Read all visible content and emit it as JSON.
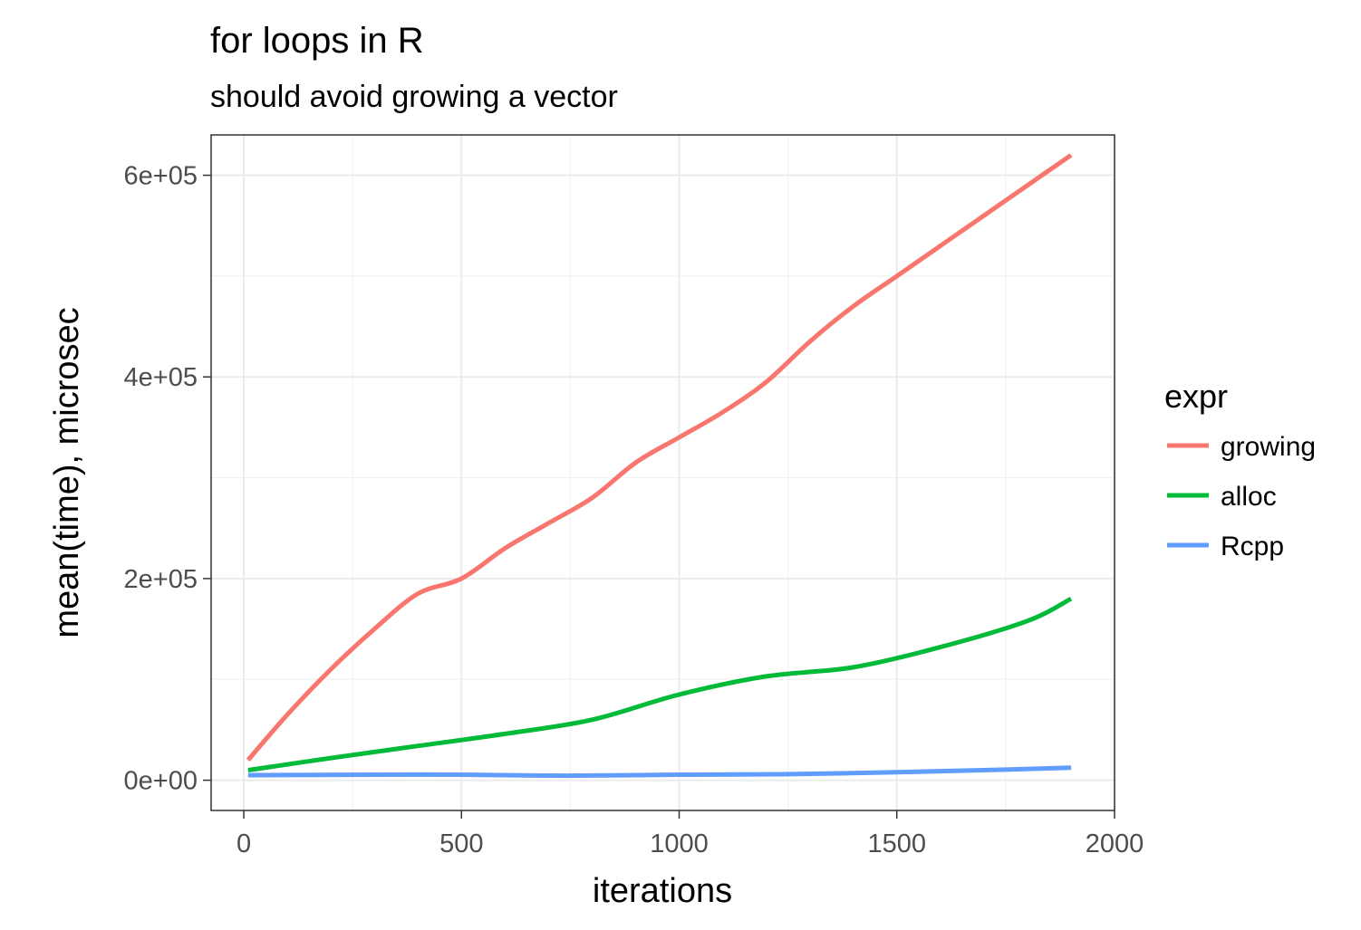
{
  "chart_data": {
    "type": "line",
    "title": "for loops in R",
    "subtitle": "should avoid growing a vector",
    "xlabel": "iterations",
    "ylabel": "mean(time), microsec",
    "xlim": [
      -75,
      2000
    ],
    "ylim": [
      -30000,
      640000
    ],
    "x_ticks": [
      0,
      500,
      1000,
      1500,
      2000
    ],
    "x_tick_labels": [
      "0",
      "500",
      "1000",
      "1500",
      "2000"
    ],
    "y_ticks": [
      0,
      200000,
      400000,
      600000
    ],
    "y_tick_labels": [
      "0e+00",
      "2e+05",
      "4e+05",
      "6e+05"
    ],
    "grid": true,
    "legend": {
      "title": "expr",
      "position": "right"
    },
    "series": [
      {
        "name": "growing",
        "color": "#f8766d",
        "x": [
          10,
          100,
          200,
          300,
          400,
          500,
          600,
          700,
          800,
          900,
          1000,
          1100,
          1200,
          1300,
          1400,
          1500,
          1600,
          1700,
          1800,
          1900
        ],
        "y": [
          20000,
          65000,
          110000,
          150000,
          185000,
          200000,
          230000,
          255000,
          280000,
          315000,
          340000,
          365000,
          395000,
          435000,
          470000,
          500000,
          530000,
          560000,
          590000,
          620000
        ]
      },
      {
        "name": "alloc",
        "color": "#00ba38",
        "x": [
          10,
          200,
          400,
          600,
          800,
          1000,
          1200,
          1400,
          1600,
          1800,
          1900
        ],
        "y": [
          10000,
          22000,
          34000,
          46000,
          60000,
          85000,
          103000,
          112000,
          132000,
          158000,
          180000
        ]
      },
      {
        "name": "Rcpp",
        "color": "#619cff",
        "x": [
          10,
          300,
          500,
          750,
          1000,
          1250,
          1500,
          1750,
          1900
        ],
        "y": [
          5000,
          5500,
          5500,
          4500,
          5500,
          6000,
          8000,
          10500,
          12500
        ]
      }
    ]
  }
}
